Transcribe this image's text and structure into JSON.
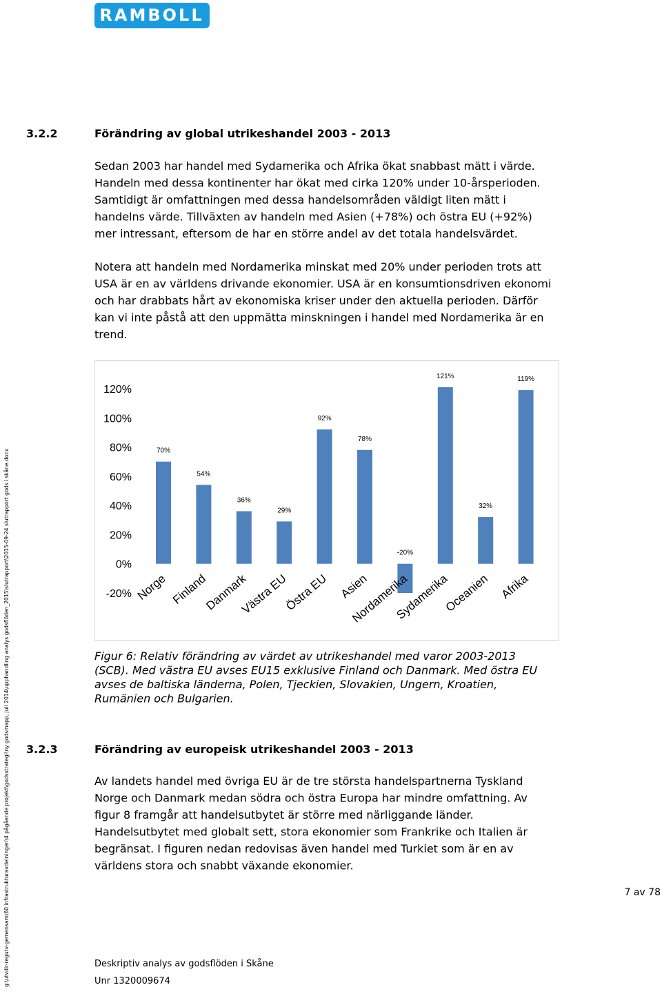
{
  "header": {
    "logo": "RAMBOLL"
  },
  "section_1": {
    "number": "3.2.2",
    "title": "Förändring av global utrikeshandel 2003 - 2013",
    "paragraphs": [
      [
        "Sedan 2003 har handel med Sydamerika och Afrika ökat snabbast mätt i värde.",
        "Handeln med dessa kontinenter har ökat med cirka 120% under 10-årsperioden.",
        "Samtidigt är omfattningen med dessa handelsområden väldigt liten mätt i",
        "handelns värde. Tillväxten av handeln med Asien (+78%) och östra EU (+92%)",
        "mer intressant, eftersom de har en större andel av det totala handelsvärdet."
      ],
      [
        "Notera att handeln med Nordamerika minskat med 20% under perioden trots att",
        "USA är en av världens drivande ekonomier. USA är en konsumtionsdriven ekonomi",
        "och har drabbats hårt av ekonomiska kriser under den aktuella perioden. Därför",
        "kan vi inte påstå att den uppmätta minskningen i handel med Nordamerika är en",
        "trend."
      ]
    ]
  },
  "chart_data": {
    "type": "bar",
    "categories": [
      "Norge",
      "Finland",
      "Danmark",
      "Västra EU",
      "Östra EU",
      "Asien",
      "Nordamerika",
      "Sydamerika",
      "Oceanien",
      "Afrika"
    ],
    "values": [
      70,
      54,
      36,
      29,
      92,
      78,
      -20,
      121,
      32,
      119
    ],
    "value_labels": [
      "70%",
      "54%",
      "36%",
      "29%",
      "92%",
      "78%",
      "-20%",
      "121%",
      "32%",
      "119%"
    ],
    "color": "#4f81bd",
    "ylim": [
      -20,
      120
    ],
    "yticks": [
      {
        "value": -20,
        "label": "-20%"
      },
      {
        "value": 0,
        "label": "0%"
      },
      {
        "value": 20,
        "label": "20%"
      },
      {
        "value": 40,
        "label": "40%"
      },
      {
        "value": 60,
        "label": "60%"
      },
      {
        "value": 80,
        "label": "80%"
      },
      {
        "value": 100,
        "label": "100%"
      },
      {
        "value": 120,
        "label": "120%"
      }
    ],
    "grid": false
  },
  "caption": [
    "Figur 6: Relativ förändring av värdet av utrikeshandel med varor 2003-2013",
    "(SCB). Med västra EU avses EU15 exklusive Finland och Danmark. Med östra EU",
    "avses de baltiska länderna, Polen, Tjeckien, Slovakien, Ungern, Kroatien,",
    "Rumänien och Bulgarien."
  ],
  "section_2": {
    "number": "3.2.3",
    "title": "Förändring av europeisk utrikeshandel 2003 - 2013",
    "paragraphs": [
      [
        "Av landets handel med övriga EU är de tre största handelspartnerna Tyskland",
        "Norge och Danmark medan södra och östra Europa har mindre omfattning. Av",
        "figur 8 framgår att handelsutbytet är större med närliggande länder.",
        "Handelsutbytet med globalt sett, stora ekonomier som Frankrike och Italien är",
        "begränsat. I figuren nedan redovisas även handel med Turkiet som är en av",
        "världens stora och snabbt växande ekonomier."
      ]
    ]
  },
  "page_number": "7 av 78",
  "footer": {
    "title": "Deskriptiv analys av godsflöden i Skåne",
    "unr": "Unr 1320009674"
  },
  "file_path": "g:\\utvdir-regutv-gemensam\\60 infrastrukturavdelningen\\4 pågående projekt\\godsstrategi\\ny godsmapp, juli 2014\\upphandling analys godsflöden_2015\\slutrapport\\2015-09-24 slutrapport gods i skåne.docx"
}
